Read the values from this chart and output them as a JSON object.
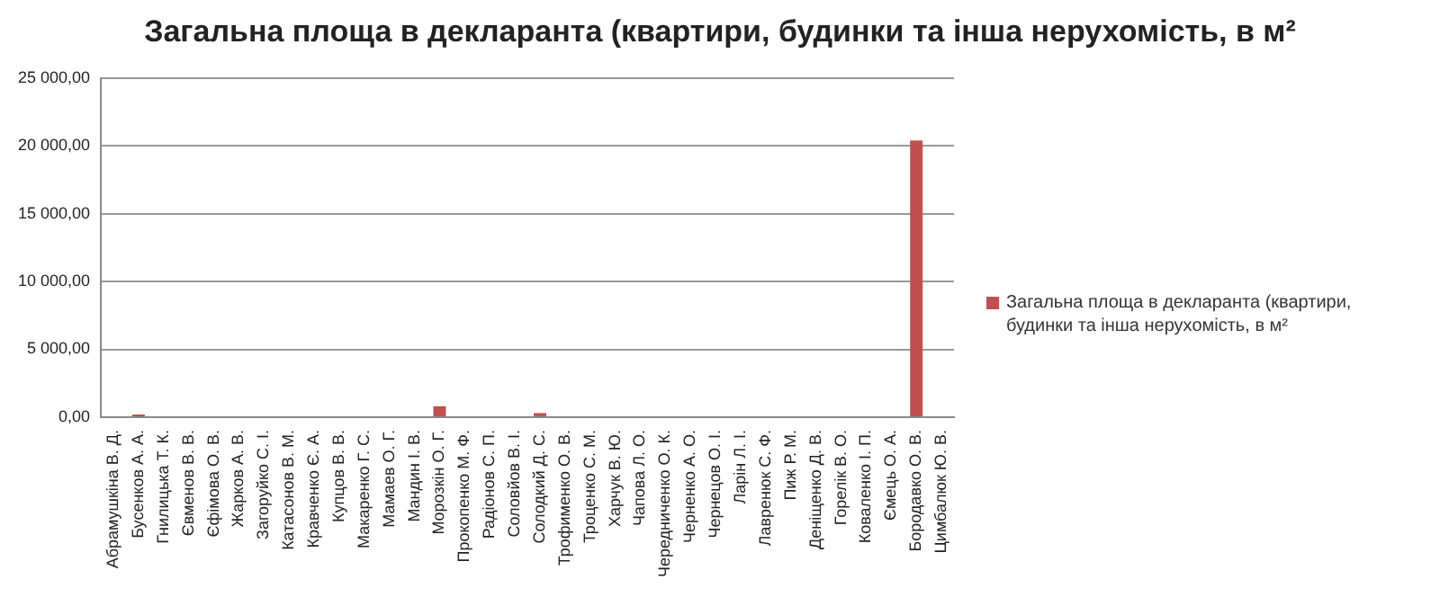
{
  "chart_data": {
    "type": "bar",
    "title": "Загальна площа в декларанта (квартири, будинки та інша нерухомість,  в м²",
    "categories": [
      "Абрамушкіна В. Д.",
      "Бусенков А. А.",
      "Гнилицька Т. К.",
      "Євменов В. В.",
      "Єфімова О. В.",
      "Жарков А. В.",
      "Загоруйко С. І.",
      "Катасонов В. М.",
      "Кравченко Є. А.",
      "Купцов В. В.",
      "Макаренко Г. С.",
      "Мамаев О. Г.",
      "Мандин І. В.",
      "Морозкін О. Г.",
      "Прокопенко М. Ф.",
      "Радіонов С. П.",
      "Соловйов В. І.",
      "Солодкий Д. С.",
      "Трофименко О. В.",
      "Троценко С. М.",
      "Харчук В. Ю.",
      "Чапова Л. О.",
      "Чередниченко О. К.",
      "Черненко А. О.",
      "Чернецов О. І.",
      "Ларін Л. І.",
      "Лавренюк С. Ф.",
      "Пиж Р. М.",
      "Деніщенко Д. В.",
      "Горелік В. О.",
      "Коваленко І. П.",
      "Ємець О. А.",
      "Бородавко О. В.",
      "Цимбалюк Ю. В."
    ],
    "series": [
      {
        "name": "Загальна площа в декларанта (квартири, будинки та інша нерухомість,  в м²",
        "color": "#c0504d",
        "values": [
          0,
          200,
          0,
          0,
          0,
          0,
          0,
          0,
          0,
          0,
          0,
          0,
          0,
          800,
          0,
          0,
          0,
          300,
          0,
          0,
          0,
          0,
          0,
          0,
          0,
          0,
          0,
          0,
          0,
          0,
          0,
          0,
          20400,
          0
        ]
      }
    ],
    "ylim": [
      0,
      25000
    ],
    "yticks": [
      {
        "value": 0,
        "label": "0,00"
      },
      {
        "value": 5000,
        "label": "5 000,00"
      },
      {
        "value": 10000,
        "label": "10 000,00"
      },
      {
        "value": 15000,
        "label": "15 000,00"
      },
      {
        "value": 20000,
        "label": "20 000,00"
      },
      {
        "value": 25000,
        "label": "25 000,00"
      }
    ],
    "grid": "y",
    "legend": "right"
  }
}
